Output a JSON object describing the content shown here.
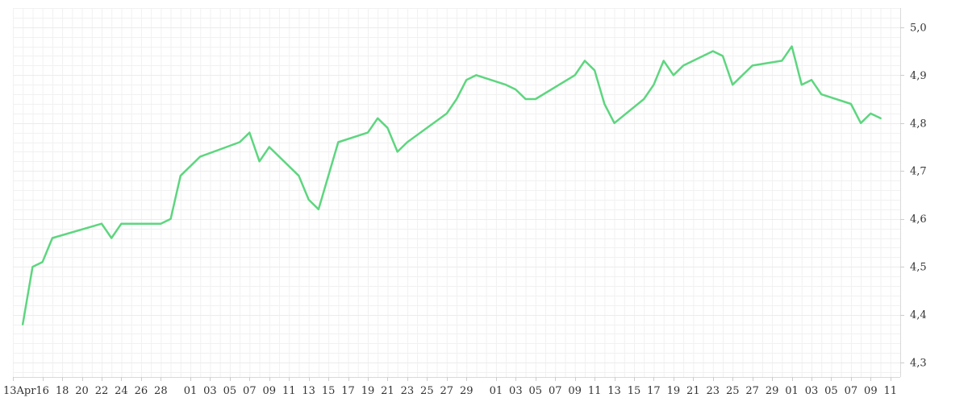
{
  "chart_data": {
    "type": "line",
    "title": "",
    "xlabel": "",
    "ylabel": "",
    "grid": true,
    "legend": "none",
    "line_color": "#5dd67f",
    "x_start_label": "13Apr",
    "x_tick_labels": [
      "13Apr",
      "16",
      "18",
      "20",
      "22",
      "24",
      "26",
      "28",
      "01",
      "03",
      "05",
      "07",
      "09",
      "11",
      "13",
      "15",
      "17",
      "19",
      "21",
      "23",
      "25",
      "27",
      "29",
      "01",
      "03",
      "05",
      "07",
      "09",
      "11",
      "13",
      "15",
      "17",
      "19",
      "21",
      "23",
      "25",
      "27",
      "29",
      "01",
      "03",
      "05",
      "07",
      "09",
      "11"
    ],
    "ylim": [
      4.27,
      5.04
    ],
    "y_ticks": [
      "4,3",
      "4,4",
      "4,5",
      "4,6",
      "4,7",
      "4,8",
      "4,9",
      "5,0"
    ],
    "x": [
      "2020-04-14",
      "2020-04-15",
      "2020-04-16",
      "2020-04-17",
      "2020-04-22",
      "2020-04-23",
      "2020-04-24",
      "2020-04-25",
      "2020-04-28",
      "2020-04-29",
      "2020-04-30",
      "2020-05-02",
      "2020-05-06",
      "2020-05-07",
      "2020-05-08",
      "2020-05-09",
      "2020-05-12",
      "2020-05-13",
      "2020-05-14",
      "2020-05-16",
      "2020-05-19",
      "2020-05-20",
      "2020-05-21",
      "2020-05-22",
      "2020-05-23",
      "2020-05-27",
      "2020-05-28",
      "2020-05-29",
      "2020-05-30",
      "2020-06-02",
      "2020-06-03",
      "2020-06-04",
      "2020-06-05",
      "2020-06-09",
      "2020-06-10",
      "2020-06-11",
      "2020-06-12",
      "2020-06-13",
      "2020-06-16",
      "2020-06-17",
      "2020-06-18",
      "2020-06-19",
      "2020-06-20",
      "2020-06-23",
      "2020-06-24",
      "2020-06-25",
      "2020-06-26",
      "2020-06-27",
      "2020-06-30",
      "2020-07-01",
      "2020-07-02",
      "2020-07-03",
      "2020-07-04",
      "2020-07-07",
      "2020-07-08",
      "2020-07-09",
      "2020-07-10"
    ],
    "values": [
      4.38,
      4.5,
      4.51,
      4.56,
      4.59,
      4.56,
      4.59,
      4.59,
      4.59,
      4.6,
      4.69,
      4.73,
      4.76,
      4.78,
      4.72,
      4.75,
      4.69,
      4.64,
      4.62,
      4.76,
      4.78,
      4.81,
      4.79,
      4.74,
      4.76,
      4.82,
      4.85,
      4.89,
      4.9,
      4.88,
      4.87,
      4.85,
      4.85,
      4.9,
      4.93,
      4.91,
      4.84,
      4.8,
      4.85,
      4.88,
      4.93,
      4.9,
      4.92,
      4.95,
      4.94,
      4.88,
      4.9,
      4.92,
      4.93,
      4.96,
      4.88,
      4.89,
      4.86,
      4.84,
      4.8,
      4.82,
      4.81
    ]
  }
}
